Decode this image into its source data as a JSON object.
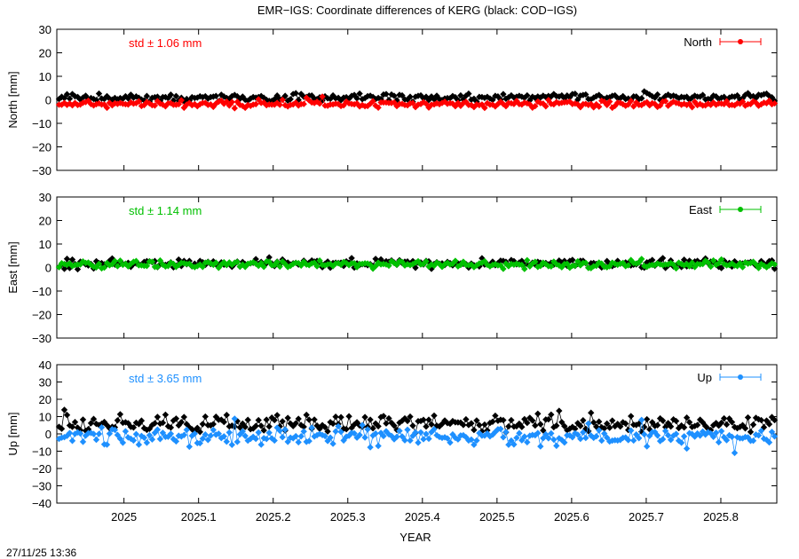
{
  "timestamp": "27/11/25 13:36",
  "chart_data": {
    "type": "line",
    "title": "EMR−IGS: Coordinate differences of KERG (black: COD−IGS)",
    "xlabel": "YEAR",
    "xlim": [
      2024.91,
      2025.875
    ],
    "x_ticks": [
      2025,
      2025.1,
      2025.2,
      2025.3,
      2025.4,
      2025.5,
      2025.6,
      2025.7,
      2025.8
    ],
    "x_tick_labels": [
      "2025",
      "2025.1",
      "2025.2",
      "2025.3",
      "2025.4",
      "2025.5",
      "2025.6",
      "2025.7",
      "2025.8"
    ],
    "panels": [
      {
        "id": "north",
        "ylabel": "North [mm]",
        "ylim": [
          -30,
          30
        ],
        "y_ticks": [
          -30,
          -20,
          -10,
          0,
          10,
          20,
          30
        ],
        "y_tick_labels": [
          "−30",
          "−20",
          "−10",
          "0",
          "10",
          "20",
          "30"
        ],
        "std_label": "std ± 1.06 mm",
        "legend": "North",
        "legend_position": "top-right",
        "color": "#ff0000",
        "ref_color": "#000000",
        "series": [
          {
            "name": "North",
            "color": "#ff0000",
            "mean": -1.8,
            "spread": 1.06,
            "seed": 11
          },
          {
            "color": "#000000",
            "mean": 0.9,
            "spread": 1.2,
            "seed": 12
          }
        ]
      },
      {
        "id": "east",
        "ylabel": "East [mm]",
        "ylim": [
          -30,
          30
        ],
        "y_ticks": [
          -30,
          -20,
          -10,
          0,
          10,
          20,
          30
        ],
        "y_tick_labels": [
          "−30",
          "−20",
          "−10",
          "0",
          "10",
          "20",
          "30"
        ],
        "std_label": "std ± 1.14 mm",
        "legend": "East",
        "legend_position": "top-right",
        "color": "#00c000",
        "series": [
          {
            "name": "East",
            "color": "#00c000",
            "mean": 1.3,
            "spread": 1.14,
            "seed": 21
          },
          {
            "color": "#000000",
            "mean": 1.8,
            "spread": 1.3,
            "seed": 22
          }
        ]
      },
      {
        "id": "up",
        "ylabel": "Up [mm]",
        "ylim": [
          -40,
          40
        ],
        "y_ticks": [
          -40,
          -30,
          -20,
          -10,
          0,
          10,
          20,
          30,
          40
        ],
        "y_tick_labels": [
          "−40",
          "−30",
          "−20",
          "−10",
          "0",
          "10",
          "20",
          "30",
          "40"
        ],
        "std_label": "std ± 3.65 mm",
        "legend": "Up",
        "legend_position": "top-right",
        "color": "#1e90ff",
        "series": [
          {
            "name": "Up",
            "color": "#1e90ff",
            "mean": -1.5,
            "spread": 3.65,
            "seed": 31
          },
          {
            "color": "#000000",
            "mean": 6.0,
            "spread": 3.2,
            "seed": 32
          }
        ]
      }
    ]
  }
}
